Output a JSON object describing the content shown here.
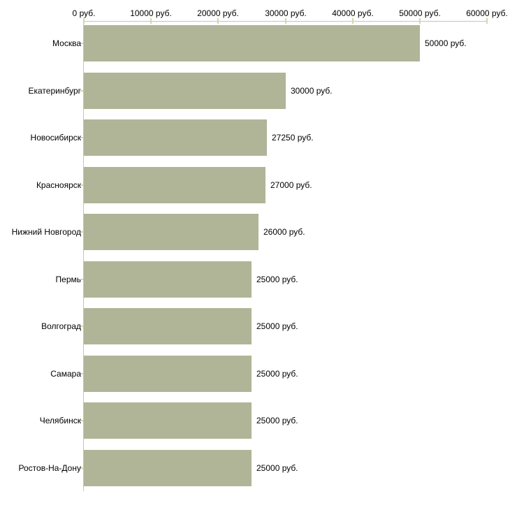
{
  "chart_data": {
    "type": "bar",
    "orientation": "horizontal",
    "title": "",
    "xlabel": "",
    "ylabel": "",
    "unit": "руб.",
    "categories": [
      "Москва",
      "Екатеринбург",
      "Новосибирск",
      "Красноярск",
      "Нижний Новгород",
      "Пермь",
      "Волгоград",
      "Самара",
      "Челябинск",
      "Ростов-На-Дону"
    ],
    "values": [
      50000,
      30000,
      27250,
      27000,
      26000,
      25000,
      25000,
      25000,
      25000,
      25000
    ],
    "bar_value_labels": [
      "50000 руб.",
      "30000 руб.",
      "27250 руб.",
      "27000 руб.",
      "26000 руб.",
      "25000 руб.",
      "25000 руб.",
      "25000 руб.",
      "25000 руб.",
      "25000 руб."
    ],
    "x_tick_values": [
      0,
      10000,
      20000,
      30000,
      40000,
      50000,
      60000
    ],
    "x_tick_labels": [
      "0 руб.",
      "10000 руб.",
      "20000 руб.",
      "30000 руб.",
      "40000 руб.",
      "50000 руб.",
      "60000 руб."
    ],
    "xlim": [
      0,
      60000
    ],
    "grid": false,
    "legend": "none",
    "axis_position": "top",
    "colors": {
      "bar": "#afb596",
      "axis_line": "#c3c3c3",
      "tick_mark": "#d8d4ab",
      "text": "#000000",
      "background": "#ffffff"
    }
  }
}
